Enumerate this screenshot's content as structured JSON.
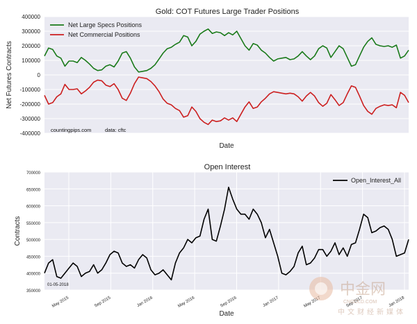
{
  "chart_data": [
    {
      "type": "line",
      "title": "Gold: COT Futures Large Trader Positions",
      "xlabel": "Date",
      "ylabel": "Net Futures Contracts",
      "ylim": [
        -400000,
        400000
      ],
      "yticks": [
        400000,
        300000,
        200000,
        100000,
        0,
        -100000,
        -200000,
        -300000,
        -400000
      ],
      "ytick_labels": [
        "400000",
        "300000",
        "200000",
        "100000",
        "0",
        "-100000",
        "-200000",
        "-300000",
        "-400000"
      ],
      "grid": true,
      "legend_position": "top-left",
      "annotations": [
        "countingpips.com",
        "data: cftc"
      ],
      "series": [
        {
          "name": "Net Large Specs Positions",
          "color": "#1a7a1a",
          "values": [
            130000,
            185000,
            175000,
            130000,
            115000,
            60000,
            95000,
            95000,
            85000,
            120000,
            100000,
            75000,
            45000,
            30000,
            35000,
            60000,
            70000,
            55000,
            95000,
            150000,
            160000,
            115000,
            55000,
            20000,
            25000,
            30000,
            45000,
            70000,
            110000,
            150000,
            180000,
            190000,
            210000,
            225000,
            270000,
            260000,
            200000,
            230000,
            280000,
            300000,
            315000,
            285000,
            295000,
            290000,
            270000,
            290000,
            275000,
            300000,
            250000,
            200000,
            170000,
            215000,
            205000,
            170000,
            150000,
            120000,
            95000,
            110000,
            115000,
            120000,
            105000,
            110000,
            130000,
            160000,
            130000,
            105000,
            130000,
            180000,
            200000,
            185000,
            120000,
            160000,
            200000,
            180000,
            120000,
            60000,
            70000,
            130000,
            190000,
            230000,
            255000,
            210000,
            200000,
            195000,
            200000,
            190000,
            205000,
            115000,
            130000,
            170000
          ]
        },
        {
          "name": "Net Commercial Positions",
          "color": "#cc1f1f",
          "values": [
            -140000,
            -200000,
            -190000,
            -150000,
            -130000,
            -65000,
            -100000,
            -100000,
            -95000,
            -130000,
            -110000,
            -85000,
            -50000,
            -35000,
            -40000,
            -70000,
            -80000,
            -60000,
            -100000,
            -160000,
            -175000,
            -125000,
            -60000,
            -15000,
            -20000,
            -25000,
            -45000,
            -75000,
            -115000,
            -165000,
            -195000,
            -205000,
            -230000,
            -245000,
            -290000,
            -280000,
            -220000,
            -250000,
            -300000,
            -325000,
            -340000,
            -310000,
            -320000,
            -315000,
            -295000,
            -310000,
            -295000,
            -320000,
            -270000,
            -220000,
            -185000,
            -230000,
            -220000,
            -185000,
            -160000,
            -130000,
            -115000,
            -120000,
            -125000,
            -130000,
            -125000,
            -130000,
            -150000,
            -180000,
            -145000,
            -120000,
            -145000,
            -190000,
            -215000,
            -195000,
            -135000,
            -170000,
            -210000,
            -190000,
            -130000,
            -75000,
            -85000,
            -145000,
            -210000,
            -250000,
            -270000,
            -230000,
            -215000,
            -205000,
            -210000,
            -205000,
            -225000,
            -120000,
            -140000,
            -190000
          ]
        }
      ]
    },
    {
      "type": "line",
      "title": "Open Interest",
      "xlabel": "Date",
      "ylabel": "Contracts",
      "ylim": [
        350000,
        700000
      ],
      "yticks": [
        700000,
        650000,
        600000,
        550000,
        500000,
        450000,
        400000,
        350000
      ],
      "ytick_labels": [
        "700000",
        "650000",
        "600000",
        "550000",
        "500000",
        "450000",
        "400000",
        "350000"
      ],
      "x_tick_labels": [
        "May 2015",
        "Sep 2015",
        "Jan 2016",
        "May 2016",
        "Sep 2016",
        "Jan 2017",
        "May 2017",
        "Sep 2017",
        "Jan 2018"
      ],
      "grid": true,
      "legend_position": "top-right",
      "annotations": [
        "01-05-2018"
      ],
      "series": [
        {
          "name": "Open_Interest_All",
          "color": "#000000",
          "values": [
            400000,
            430000,
            440000,
            390000,
            385000,
            400000,
            415000,
            430000,
            420000,
            390000,
            400000,
            405000,
            425000,
            400000,
            410000,
            430000,
            455000,
            465000,
            460000,
            430000,
            420000,
            425000,
            415000,
            440000,
            455000,
            445000,
            410000,
            395000,
            400000,
            410000,
            395000,
            380000,
            430000,
            460000,
            475000,
            500000,
            490000,
            505000,
            510000,
            560000,
            590000,
            500000,
            495000,
            540000,
            590000,
            655000,
            620000,
            590000,
            575000,
            575000,
            560000,
            590000,
            575000,
            550000,
            505000,
            530000,
            490000,
            450000,
            400000,
            395000,
            405000,
            420000,
            460000,
            480000,
            425000,
            430000,
            445000,
            470000,
            470000,
            450000,
            465000,
            490000,
            455000,
            475000,
            450000,
            485000,
            490000,
            530000,
            575000,
            565000,
            520000,
            525000,
            535000,
            540000,
            530000,
            500000,
            450000,
            455000,
            460000,
            500000
          ]
        }
      ]
    }
  ],
  "watermark": {
    "cn_big": "中金网",
    "domain": "CNGOLD.COM",
    "cn_small": "中文财经新媒体"
  }
}
